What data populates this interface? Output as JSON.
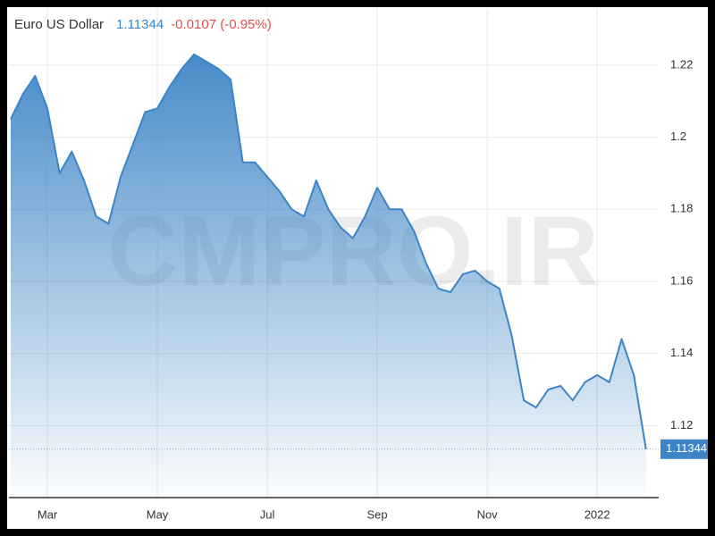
{
  "chart_data": {
    "type": "area",
    "title": "Euro US Dollar",
    "change": "-0.0107 (-0.95%)",
    "watermark": "CMPRO.IR",
    "color": "#3d85c6",
    "change_color": "#e05050",
    "grid": true,
    "categories": [
      null,
      null,
      null,
      "Mar",
      null,
      null,
      null,
      null,
      null,
      null,
      null,
      null,
      "May",
      null,
      null,
      null,
      null,
      null,
      null,
      null,
      null,
      "Jul",
      null,
      null,
      null,
      null,
      null,
      null,
      null,
      null,
      "Sep",
      null,
      null,
      null,
      null,
      null,
      null,
      null,
      null,
      "Nov",
      null,
      null,
      null,
      null,
      null,
      null,
      null,
      null,
      "2022",
      null,
      null,
      null,
      null
    ],
    "values": [
      1.205,
      1.212,
      1.217,
      1.208,
      1.19,
      1.196,
      1.188,
      1.178,
      1.176,
      1.189,
      1.198,
      1.207,
      1.208,
      1.214,
      1.219,
      1.223,
      1.221,
      1.219,
      1.216,
      1.193,
      1.193,
      1.189,
      1.185,
      1.18,
      1.178,
      1.188,
      1.18,
      1.175,
      1.172,
      1.178,
      1.186,
      1.18,
      1.18,
      1.174,
      1.165,
      1.158,
      1.157,
      1.162,
      1.163,
      1.16,
      1.158,
      1.145,
      1.127,
      1.125,
      1.13,
      1.131,
      1.127,
      1.132,
      1.134,
      1.132,
      1.144,
      1.134,
      1.11344
    ],
    "ylim": [
      1.1,
      1.2356
    ],
    "yticks": [
      1.12,
      1.14,
      1.16,
      1.18,
      1.2,
      1.22
    ]
  }
}
